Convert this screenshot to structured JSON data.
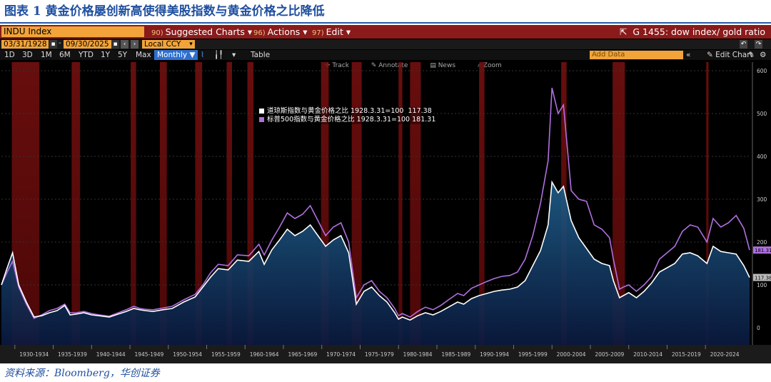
{
  "figure": {
    "title": "图表 1  黄金价格屡创新高使得美股指数与黄金价格之比降低",
    "source": "资料来源：Bloomberg，华创证券"
  },
  "terminal": {
    "ticker": "INDU Index",
    "menus": [
      {
        "num": "90)",
        "label": "Suggested Charts ▾"
      },
      {
        "num": "96)",
        "label": "Actions ▾"
      },
      {
        "num": "97)",
        "label": "Edit ▾"
      }
    ],
    "function_title": "G 1455: dow index/ gold ratio",
    "start_date": "03/31/1928",
    "end_date": "09/30/2025",
    "currency": "Local CCY",
    "periods": [
      "1D",
      "3D",
      "1M",
      "6M",
      "YTD",
      "1Y",
      "5Y",
      "Max"
    ],
    "selected_period": "Monthly ▼",
    "table_label": "Table",
    "add_data_placeholder": "Add Data",
    "edit_chart": "Edit Chart",
    "tools": [
      "Track",
      "Annotate",
      "News",
      "Zoom"
    ],
    "accent": "#f2a43a",
    "menu_bar_color": "#8b1a1a"
  },
  "chart_data": {
    "type": "line",
    "title": "",
    "xlabel": "",
    "ylabel": "",
    "xlim": [
      1928.25,
      2025.75
    ],
    "ylim": [
      -40,
      620
    ],
    "yticks": [
      0,
      100,
      200,
      300,
      400,
      500,
      600
    ],
    "xtick_labels": [
      "1930-1934",
      "1935-1939",
      "1940-1944",
      "1945-1949",
      "1950-1954",
      "1955-1959",
      "1960-1964",
      "1965-1969",
      "1970-1974",
      "1975-1979",
      "1980-1984",
      "1985-1989",
      "1990-1994",
      "1995-1999",
      "2000-2004",
      "2005-2009",
      "2010-2014",
      "2015-2019",
      "2020-2024"
    ],
    "last_values": {
      "dow": "117.38",
      "sp500": "181.31"
    },
    "recessions": [
      [
        1929.6,
        1933.2
      ],
      [
        1937.4,
        1938.5
      ],
      [
        1945.1,
        1945.8
      ],
      [
        1948.9,
        1949.8
      ],
      [
        1953.5,
        1954.4
      ],
      [
        1957.6,
        1958.3
      ],
      [
        1960.3,
        1961.1
      ],
      [
        1969.9,
        1970.9
      ],
      [
        1973.9,
        1975.2
      ],
      [
        1980.0,
        1980.5
      ],
      [
        1981.5,
        1982.9
      ],
      [
        1990.5,
        1991.2
      ],
      [
        2001.2,
        2001.9
      ],
      [
        2007.9,
        2009.5
      ],
      [
        2020.1,
        2020.4
      ]
    ],
    "series": [
      {
        "name": "道琼斯指数与黄金价格之比 1928.3.31=100",
        "legend_value": "117.38",
        "color": "#ffffff",
        "x": [
          1928.25,
          1929.0,
          1929.7,
          1930.5,
          1931.5,
          1932.5,
          1933.5,
          1934.5,
          1935.5,
          1936.5,
          1937.2,
          1938.0,
          1939.0,
          1940.0,
          1941.0,
          1942.3,
          1943.5,
          1944.5,
          1945.5,
          1946.3,
          1947.0,
          1948.0,
          1949.3,
          1950.5,
          1952.0,
          1953.5,
          1954.5,
          1955.5,
          1956.5,
          1957.8,
          1959.0,
          1960.5,
          1961.8,
          1962.5,
          1963.5,
          1964.5,
          1965.5,
          1966.5,
          1967.5,
          1968.5,
          1969.5,
          1970.5,
          1971.5,
          1972.5,
          1973.5,
          1974.5,
          1975.5,
          1976.5,
          1977.5,
          1978.5,
          1979.5,
          1980.0,
          1980.5,
          1981.5,
          1982.5,
          1983.5,
          1984.5,
          1985.5,
          1986.5,
          1987.7,
          1988.5,
          1989.5,
          1990.5,
          1991.5,
          1992.5,
          1993.5,
          1994.5,
          1995.5,
          1996.5,
          1997.5,
          1998.5,
          1999.5,
          2000.0,
          2000.8,
          2001.5,
          2002.5,
          2003.5,
          2004.5,
          2005.5,
          2006.5,
          2007.5,
          2008.0,
          2008.8,
          2009.3,
          2010.0,
          2011.0,
          2012.0,
          2013.0,
          2014.0,
          2015.0,
          2016.0,
          2017.0,
          2018.0,
          2019.0,
          2020.2,
          2021.0,
          2022.0,
          2023.0,
          2024.0,
          2025.0,
          2025.75
        ],
        "values": [
          100,
          140,
          175,
          100,
          60,
          25,
          28,
          35,
          40,
          52,
          30,
          32,
          35,
          30,
          28,
          25,
          32,
          38,
          45,
          42,
          40,
          38,
          42,
          45,
          60,
          72,
          95,
          118,
          138,
          135,
          158,
          155,
          178,
          148,
          182,
          205,
          230,
          215,
          225,
          240,
          215,
          190,
          205,
          215,
          175,
          55,
          85,
          95,
          75,
          60,
          35,
          20,
          25,
          18,
          28,
          35,
          30,
          38,
          48,
          60,
          55,
          68,
          75,
          80,
          85,
          88,
          90,
          95,
          110,
          145,
          180,
          240,
          340,
          315,
          330,
          250,
          210,
          185,
          160,
          150,
          145,
          110,
          70,
          75,
          82,
          70,
          85,
          105,
          130,
          140,
          150,
          172,
          175,
          168,
          150,
          190,
          178,
          175,
          172,
          145,
          117.38
        ]
      },
      {
        "name": "标普500指数与黄金价格之比 1928.3.31=100",
        "legend_value": "181.31",
        "color": "#b070e0",
        "x": [
          1928.25,
          1929.0,
          1929.7,
          1930.5,
          1931.5,
          1932.5,
          1933.5,
          1934.5,
          1935.5,
          1936.5,
          1937.2,
          1938.0,
          1939.0,
          1940.0,
          1941.0,
          1942.3,
          1943.5,
          1944.5,
          1945.5,
          1946.3,
          1947.0,
          1948.0,
          1949.3,
          1950.5,
          1952.0,
          1953.5,
          1954.5,
          1955.5,
          1956.5,
          1957.8,
          1959.0,
          1960.5,
          1961.8,
          1962.5,
          1963.5,
          1964.5,
          1965.5,
          1966.5,
          1967.5,
          1968.5,
          1969.5,
          1970.5,
          1971.5,
          1972.5,
          1973.5,
          1974.5,
          1975.5,
          1976.5,
          1977.5,
          1978.5,
          1979.5,
          1980.0,
          1980.5,
          1981.5,
          1982.5,
          1983.5,
          1984.5,
          1985.5,
          1986.5,
          1987.7,
          1988.5,
          1989.5,
          1990.5,
          1991.5,
          1992.5,
          1993.5,
          1994.5,
          1995.5,
          1996.5,
          1997.5,
          1998.5,
          1999.5,
          2000.0,
          2000.8,
          2001.5,
          2002.5,
          2003.5,
          2004.5,
          2005.5,
          2006.5,
          2007.5,
          2008.0,
          2008.8,
          2009.3,
          2010.0,
          2011.0,
          2012.0,
          2013.0,
          2014.0,
          2015.0,
          2016.0,
          2017.0,
          2018.0,
          2019.0,
          2020.2,
          2021.0,
          2022.0,
          2023.0,
          2024.0,
          2025.0,
          2025.75
        ],
        "values": [
          100,
          130,
          155,
          95,
          55,
          22,
          30,
          40,
          45,
          55,
          35,
          35,
          38,
          33,
          30,
          27,
          35,
          42,
          50,
          45,
          43,
          42,
          46,
          50,
          65,
          78,
          100,
          128,
          148,
          145,
          170,
          168,
          195,
          170,
          205,
          235,
          268,
          255,
          265,
          285,
          250,
          215,
          235,
          245,
          200,
          70,
          100,
          110,
          85,
          70,
          45,
          28,
          33,
          25,
          38,
          48,
          42,
          52,
          65,
          80,
          75,
          92,
          100,
          108,
          115,
          120,
          122,
          130,
          160,
          215,
          290,
          390,
          560,
          500,
          520,
          320,
          300,
          295,
          240,
          230,
          210,
          160,
          90,
          95,
          100,
          85,
          100,
          120,
          160,
          175,
          190,
          225,
          240,
          235,
          200,
          255,
          235,
          245,
          262,
          232,
          181.31
        ]
      }
    ]
  }
}
